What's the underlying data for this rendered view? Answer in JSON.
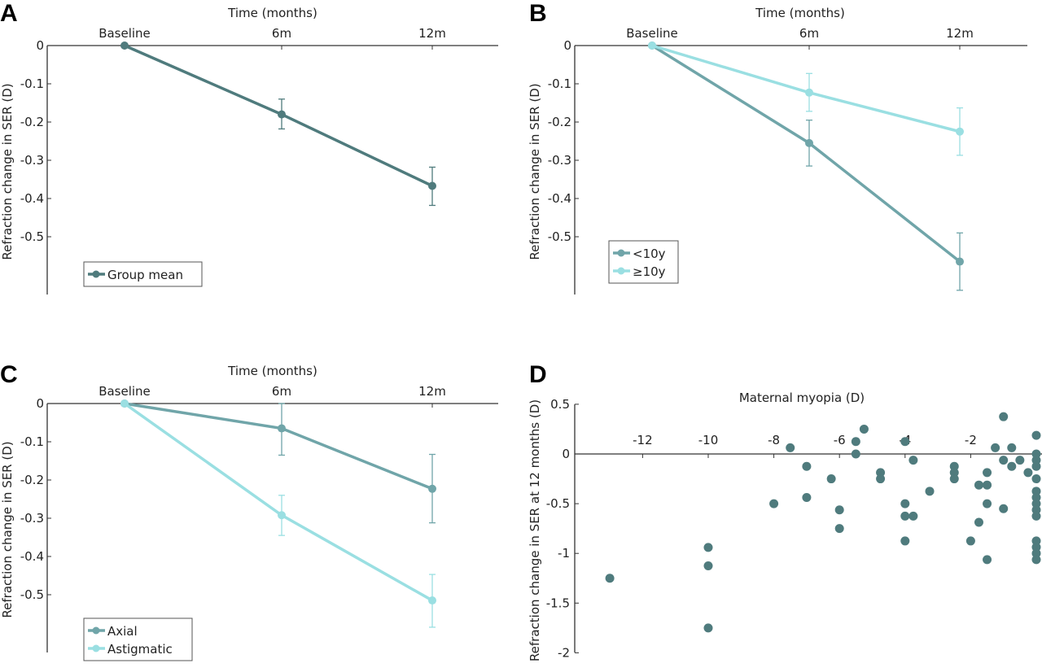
{
  "chart_data": [
    {
      "panel": "A",
      "type": "line",
      "xlabel": "Time (months)",
      "ylabel": "Refraction change in SER (D)",
      "categories": [
        "Baseline",
        "6m",
        "12m"
      ],
      "yticks": [
        "0",
        "-0.1",
        "-0.2",
        "-0.3",
        "-0.4",
        "-0.5"
      ],
      "ylim": [
        -0.65,
        0
      ],
      "legend_position": "bottom-left",
      "series": [
        {
          "name": "Group mean",
          "color": "#4f7b7d",
          "values": [
            0,
            -0.18,
            -0.367
          ],
          "err_low": [
            0,
            -0.218,
            -0.418
          ],
          "err_high": [
            0,
            -0.14,
            -0.318
          ]
        }
      ]
    },
    {
      "panel": "B",
      "type": "line",
      "xlabel": "Time (months)",
      "ylabel": "Refraction change in SER (D)",
      "categories": [
        "Baseline",
        "6m",
        "12m"
      ],
      "yticks": [
        "0",
        "-0.1",
        "-0.2",
        "-0.3",
        "-0.4",
        "-0.5"
      ],
      "ylim": [
        -0.65,
        0
      ],
      "legend_position": "bottom-left",
      "series": [
        {
          "name": "<10y",
          "color": "#70a5a9",
          "values": [
            0,
            -0.255,
            -0.565
          ],
          "err_low": [
            0,
            -0.315,
            -0.64
          ],
          "err_high": [
            0,
            -0.195,
            -0.49
          ]
        },
        {
          "name": "≥10y",
          "color": "#9adfe2",
          "values": [
            0,
            -0.123,
            -0.225
          ],
          "err_low": [
            0,
            -0.172,
            -0.287
          ],
          "err_high": [
            0,
            -0.073,
            -0.163
          ]
        }
      ]
    },
    {
      "panel": "C",
      "type": "line",
      "xlabel": "Time (months)",
      "ylabel": "Refraction change in SER (D)",
      "categories": [
        "Baseline",
        "6m",
        "12m"
      ],
      "yticks": [
        "0",
        "-0.1",
        "-0.2",
        "-0.3",
        "-0.4",
        "-0.5"
      ],
      "ylim": [
        -0.65,
        0
      ],
      "legend_position": "bottom-left",
      "series": [
        {
          "name": "Axial",
          "color": "#70a5a9",
          "values": [
            0,
            -0.065,
            -0.223
          ],
          "err_low": [
            0,
            -0.135,
            -0.312
          ],
          "err_high": [
            0,
            0,
            -0.133
          ]
        },
        {
          "name": "Astigmatic",
          "color": "#9adfe2",
          "values": [
            0,
            -0.292,
            -0.515
          ],
          "err_low": [
            0,
            -0.345,
            -0.585
          ],
          "err_high": [
            0,
            -0.24,
            -0.447
          ]
        }
      ]
    },
    {
      "panel": "D",
      "type": "scatter",
      "xlabel": "Maternal myopia (D)",
      "ylabel": "Refraction change in SER at 12 months (D)",
      "xticks": [
        "-12",
        "-10",
        "-8",
        "-6",
        "-4",
        "-2"
      ],
      "yticks": [
        "0.5",
        "0",
        "-0.5",
        "-1",
        "-1.5",
        "-2"
      ],
      "xlim": [
        -14,
        0.2
      ],
      "ylim": [
        -2,
        0.5
      ],
      "color": "#4f7b7d",
      "points": [
        [
          -13,
          -1.25
        ],
        [
          -10,
          -0.94
        ],
        [
          -10,
          -1.125
        ],
        [
          -10,
          -1.75
        ],
        [
          -8,
          -0.5
        ],
        [
          -7.5,
          0.0625
        ],
        [
          -7,
          -0.125
        ],
        [
          -7,
          -0.4375
        ],
        [
          -6.25,
          -0.25
        ],
        [
          -6,
          -0.5625
        ],
        [
          -6,
          -0.75
        ],
        [
          -5.5,
          0.125
        ],
        [
          -5.5,
          0
        ],
        [
          -5.25,
          0.25
        ],
        [
          -4.75,
          -0.1875
        ],
        [
          -4.75,
          -0.25
        ],
        [
          -4,
          0.125
        ],
        [
          -4,
          -0.5
        ],
        [
          -4,
          -0.625
        ],
        [
          -4,
          -0.875
        ],
        [
          -3.75,
          -0.0625
        ],
        [
          -3.75,
          -0.625
        ],
        [
          -3.25,
          -0.375
        ],
        [
          -2.5,
          -0.125
        ],
        [
          -2.5,
          -0.1875
        ],
        [
          -2.5,
          -0.25
        ],
        [
          -2,
          -0.875
        ],
        [
          -1.75,
          -0.3125
        ],
        [
          -1.75,
          -0.6875
        ],
        [
          -1.5,
          -0.1875
        ],
        [
          -1.5,
          -0.3125
        ],
        [
          -1.5,
          -0.5
        ],
        [
          -1.5,
          -1.0625
        ],
        [
          -1.25,
          0.0625
        ],
        [
          -1,
          0.375
        ],
        [
          -1,
          -0.0625
        ],
        [
          -1,
          -0.55
        ],
        [
          -0.75,
          0.0625
        ],
        [
          -0.75,
          -0.125
        ],
        [
          -0.5,
          -0.0625
        ],
        [
          -0.25,
          -0.1875
        ],
        [
          0,
          0.1875
        ],
        [
          0,
          0
        ],
        [
          0,
          -0.0625
        ],
        [
          0,
          -0.125
        ],
        [
          0,
          -0.25
        ],
        [
          0,
          -0.375
        ],
        [
          0,
          -0.4375
        ],
        [
          0,
          -0.5
        ],
        [
          0,
          -0.5625
        ],
        [
          0,
          -0.625
        ],
        [
          0,
          -0.875
        ],
        [
          0,
          -0.9375
        ],
        [
          0,
          -1.0
        ],
        [
          0,
          -1.0625
        ]
      ]
    }
  ]
}
